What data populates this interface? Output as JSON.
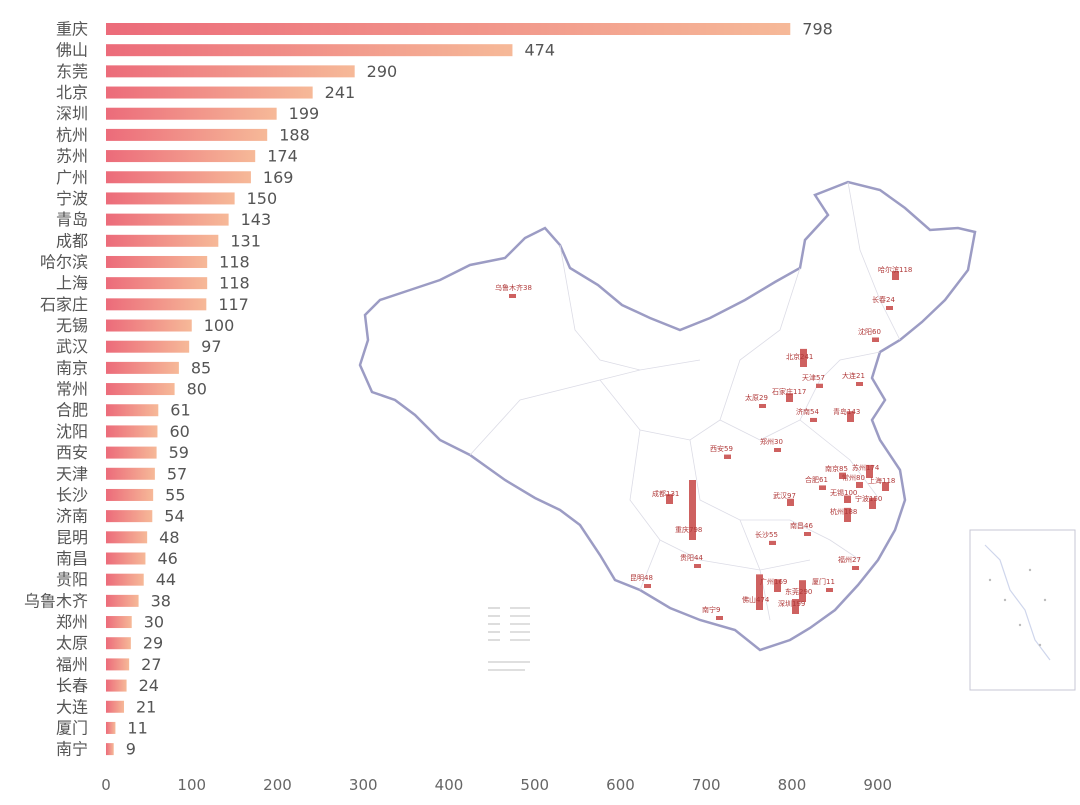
{
  "chart_data": {
    "type": "bar",
    "orientation": "horizontal",
    "categories": [
      "重庆",
      "佛山",
      "东莞",
      "北京",
      "深圳",
      "杭州",
      "苏州",
      "广州",
      "宁波",
      "青岛",
      "成都",
      "哈尔滨",
      "上海",
      "石家庄",
      "无锡",
      "武汉",
      "南京",
      "常州",
      "合肥",
      "沈阳",
      "西安",
      "天津",
      "长沙",
      "济南",
      "昆明",
      "南昌",
      "贵阳",
      "乌鲁木齐",
      "郑州",
      "太原",
      "福州",
      "长春",
      "大连",
      "厦门",
      "南宁"
    ],
    "values": [
      798,
      474,
      290,
      241,
      199,
      188,
      174,
      169,
      150,
      143,
      131,
      118,
      118,
      117,
      100,
      97,
      85,
      80,
      61,
      60,
      59,
      57,
      55,
      54,
      48,
      46,
      44,
      38,
      30,
      29,
      27,
      24,
      21,
      11,
      9
    ],
    "xlim": [
      0,
      950
    ],
    "xticks": [
      0,
      100,
      200,
      300,
      400,
      500,
      600,
      700,
      800,
      900
    ],
    "grid": false,
    "legend": "none",
    "colors": {
      "bar_start": "#ec6b7a",
      "bar_end": "#f6b998",
      "map_bar": "#c9504f",
      "map_border": "#9c9cc4"
    }
  },
  "map": {
    "labels": [
      {
        "city": "乌鲁木齐",
        "value": 38
      },
      {
        "city": "哈尔滨",
        "value": 118
      },
      {
        "city": "长春",
        "value": 24
      },
      {
        "city": "沈阳",
        "value": 60
      },
      {
        "city": "北京",
        "value": 241
      },
      {
        "city": "天津",
        "value": 57
      },
      {
        "city": "大连",
        "value": 21
      },
      {
        "city": "石家庄",
        "value": 117
      },
      {
        "city": "太原",
        "value": 29
      },
      {
        "city": "济南",
        "value": 54
      },
      {
        "city": "青岛",
        "value": 143
      },
      {
        "city": "郑州",
        "value": 30
      },
      {
        "city": "西安",
        "value": 59
      },
      {
        "city": "南京",
        "value": 85
      },
      {
        "city": "苏州",
        "value": 174
      },
      {
        "city": "合肥",
        "value": 61
      },
      {
        "city": "常州",
        "value": 80
      },
      {
        "city": "上海",
        "value": 118
      },
      {
        "city": "无锡",
        "value": 100
      },
      {
        "city": "武汉",
        "value": 97
      },
      {
        "city": "宁波",
        "value": 150
      },
      {
        "city": "杭州",
        "value": 188
      },
      {
        "city": "成都",
        "value": 131
      },
      {
        "city": "重庆",
        "value": 798
      },
      {
        "city": "长沙",
        "value": 55
      },
      {
        "city": "南昌",
        "value": 46
      },
      {
        "city": "贵阳",
        "value": 44
      },
      {
        "city": "福州",
        "value": 27
      },
      {
        "city": "昆明",
        "value": 48
      },
      {
        "city": "厦门",
        "value": 11
      },
      {
        "city": "广州",
        "value": 169
      },
      {
        "city": "东莞",
        "value": 290
      },
      {
        "city": "佛山",
        "value": 474
      },
      {
        "city": "深圳",
        "value": 199
      },
      {
        "city": "南宁",
        "value": 9
      }
    ]
  }
}
